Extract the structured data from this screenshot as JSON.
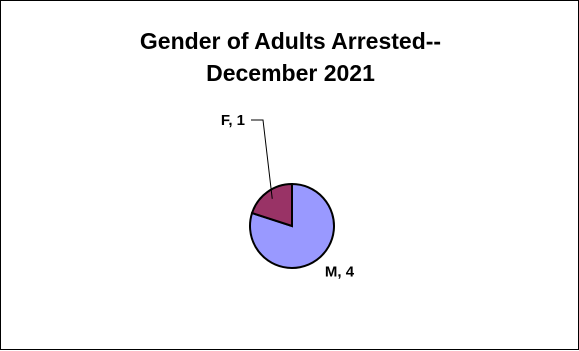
{
  "chart_data": {
    "type": "pie",
    "title_lines": [
      "Gender of Adults Arrested--",
      "December 2021"
    ],
    "slices": [
      {
        "label": "M",
        "value": 4,
        "display": "M, 4",
        "color": "#9999ff"
      },
      {
        "label": "F",
        "value": 1,
        "display": "F, 1",
        "color": "#993366"
      }
    ],
    "legend": "none"
  }
}
